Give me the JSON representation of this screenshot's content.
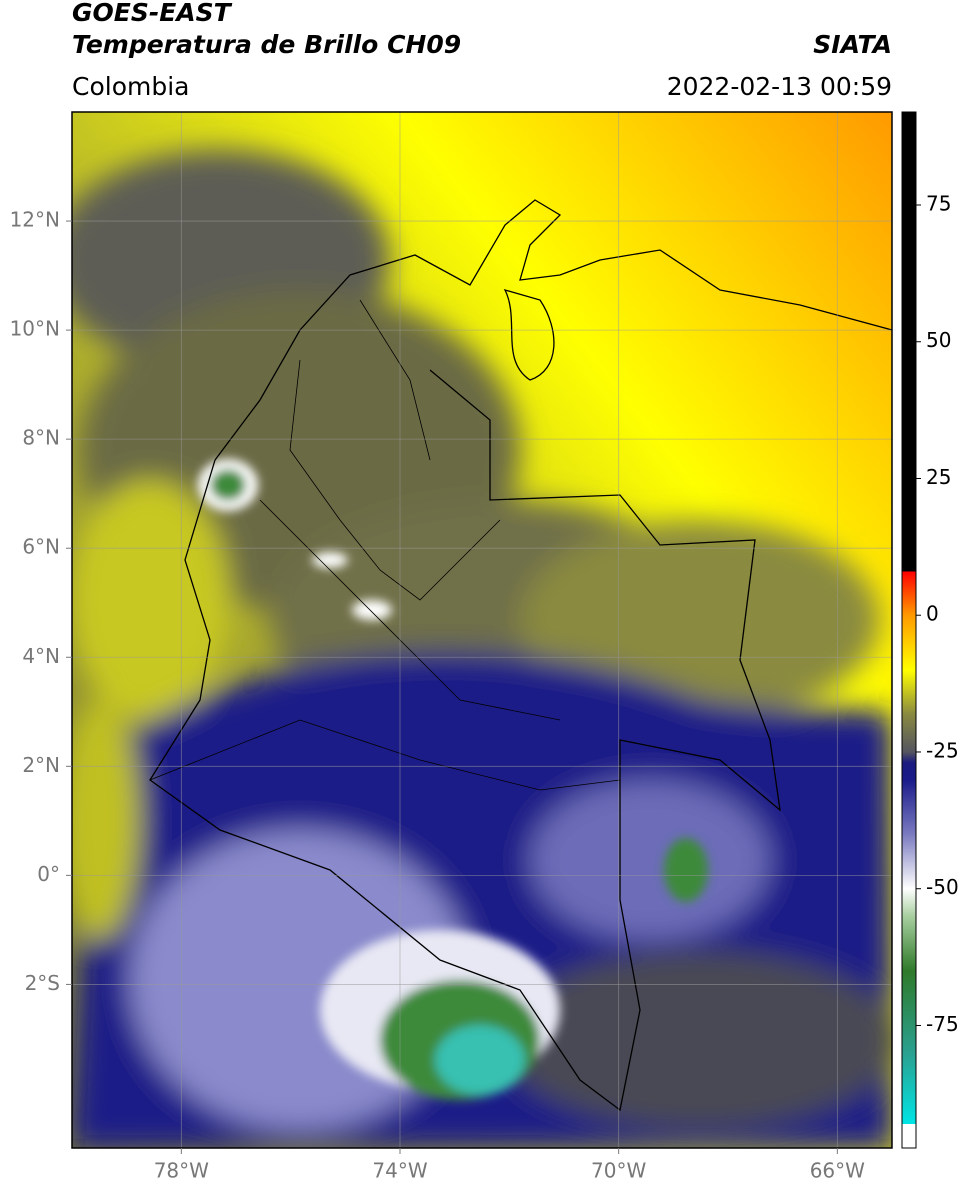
{
  "chart_data": {
    "type": "map",
    "header": {
      "source": "GOES-EAST",
      "product": "Temperatura de Brillo CH09",
      "agency": "SIATA",
      "region": "Colombia",
      "datetime": "2022-02-13 00:59"
    },
    "xlim": [
      -80,
      -65
    ],
    "ylim": [
      -5,
      14
    ],
    "xticks": [
      {
        "value": -78,
        "label": "78°W"
      },
      {
        "value": -74,
        "label": "74°W"
      },
      {
        "value": -70,
        "label": "70°W"
      },
      {
        "value": -66,
        "label": "66°W"
      }
    ],
    "yticks": [
      {
        "value": 12,
        "label": "12°N"
      },
      {
        "value": 10,
        "label": "10°N"
      },
      {
        "value": 8,
        "label": "8°N"
      },
      {
        "value": 6,
        "label": "6°N"
      },
      {
        "value": 4,
        "label": "4°N"
      },
      {
        "value": 2,
        "label": "2°N"
      },
      {
        "value": 0,
        "label": "0°"
      },
      {
        "value": -2,
        "label": "2°S"
      }
    ],
    "grid": true,
    "colorbar": {
      "lim": [
        -97.4,
        92
      ],
      "ticks": [
        75,
        50,
        25,
        0,
        -25,
        -50,
        -75
      ],
      "stops": [
        {
          "value": -97.4,
          "color": "#ffffff"
        },
        {
          "value": -93,
          "color": "#ffffff"
        },
        {
          "value": -93,
          "color": "#00e5e5"
        },
        {
          "value": -80,
          "color": "#2aa090"
        },
        {
          "value": -65,
          "color": "#2f7a2a"
        },
        {
          "value": -55,
          "color": "#a8cfa0"
        },
        {
          "value": -50,
          "color": "#ffffff"
        },
        {
          "value": -40,
          "color": "#7a7ac0"
        },
        {
          "value": -30,
          "color": "#1a1a8a"
        },
        {
          "value": -27,
          "color": "#1a1a80"
        },
        {
          "value": -25,
          "color": "#555560"
        },
        {
          "value": -18,
          "color": "#8a8a40"
        },
        {
          "value": -10,
          "color": "#ffff00"
        },
        {
          "value": 0,
          "color": "#ff9a00"
        },
        {
          "value": 8,
          "color": "#ff0000"
        },
        {
          "value": 8,
          "color": "#000000"
        },
        {
          "value": 92,
          "color": "#000000"
        }
      ]
    }
  }
}
